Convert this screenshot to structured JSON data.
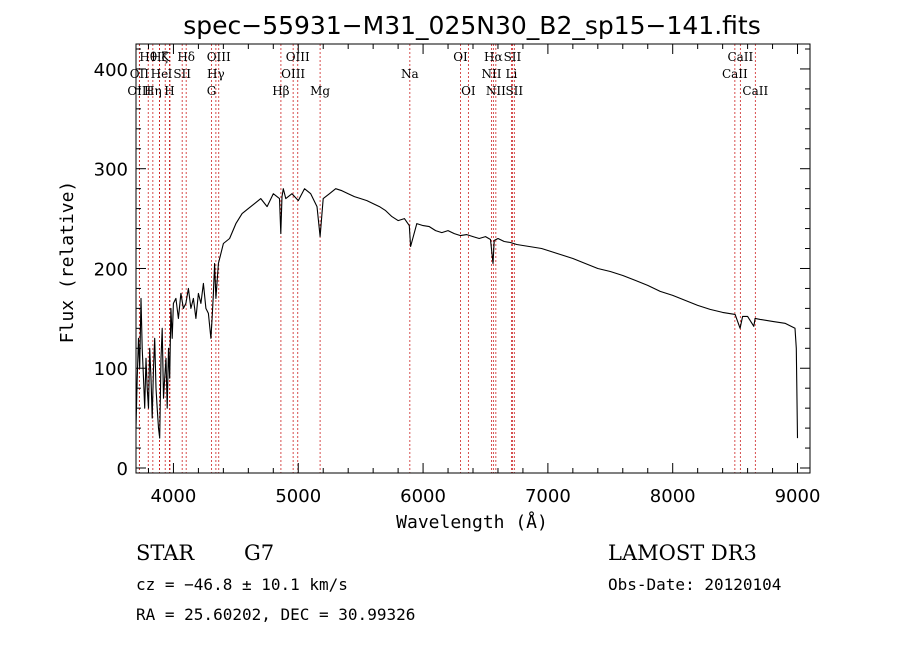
{
  "chart_data": {
    "type": "line",
    "title": "spec−55931−M31_025N30_B2_sp15−141.fits",
    "xlabel": "Wavelength (Å)",
    "ylabel": "Flux (relative)",
    "xlim": [
      3700,
      9100
    ],
    "ylim": [
      -5,
      425
    ],
    "xticks": [
      4000,
      5000,
      6000,
      7000,
      8000,
      9000
    ],
    "xtick_labels": [
      "4000",
      "5000",
      "6000",
      "7000",
      "8000",
      "9000"
    ],
    "yticks": [
      0,
      100,
      200,
      300,
      400
    ],
    "ytick_labels": [
      "0",
      "100",
      "200",
      "300",
      "400"
    ],
    "series": [
      {
        "name": "flux",
        "x": [
          3700,
          3710,
          3720,
          3730,
          3740,
          3750,
          3760,
          3770,
          3780,
          3790,
          3800,
          3810,
          3820,
          3830,
          3840,
          3850,
          3860,
          3870,
          3880,
          3890,
          3900,
          3910,
          3920,
          3930,
          3940,
          3950,
          3960,
          3970,
          3980,
          3990,
          4000,
          4020,
          4040,
          4060,
          4080,
          4100,
          4120,
          4140,
          4160,
          4180,
          4200,
          4220,
          4240,
          4260,
          4280,
          4300,
          4310,
          4320,
          4330,
          4340,
          4360,
          4380,
          4400,
          4450,
          4500,
          4550,
          4600,
          4650,
          4700,
          4750,
          4800,
          4850,
          4860,
          4870,
          4880,
          4900,
          4950,
          5000,
          5050,
          5100,
          5150,
          5175,
          5200,
          5250,
          5300,
          5350,
          5400,
          5450,
          5500,
          5550,
          5600,
          5650,
          5700,
          5750,
          5800,
          5850,
          5890,
          5900,
          5950,
          6000,
          6050,
          6100,
          6150,
          6200,
          6250,
          6300,
          6350,
          6400,
          6450,
          6500,
          6540,
          6560,
          6570,
          6600,
          6650,
          6700,
          6750,
          6800,
          6850,
          6900,
          6950,
          7000,
          7100,
          7200,
          7300,
          7400,
          7500,
          7600,
          7700,
          7800,
          7900,
          8000,
          8100,
          8200,
          8300,
          8400,
          8500,
          8540,
          8560,
          8600,
          8650,
          8660,
          8700,
          8800,
          8900,
          8980,
          8990,
          9000
        ],
        "y": [
          40,
          90,
          130,
          100,
          170,
          120,
          90,
          60,
          110,
          80,
          60,
          120,
          90,
          50,
          100,
          130,
          80,
          60,
          40,
          30,
          110,
          140,
          70,
          90,
          110,
          60,
          120,
          90,
          160,
          130,
          165,
          170,
          150,
          175,
          160,
          165,
          180,
          160,
          170,
          150,
          175,
          165,
          185,
          160,
          155,
          130,
          150,
          175,
          205,
          170,
          205,
          215,
          225,
          230,
          245,
          255,
          260,
          265,
          270,
          262,
          275,
          270,
          235,
          272,
          280,
          270,
          275,
          268,
          280,
          275,
          262,
          232,
          270,
          275,
          280,
          278,
          275,
          272,
          270,
          268,
          265,
          262,
          258,
          252,
          248,
          250,
          243,
          222,
          245,
          243,
          242,
          238,
          236,
          238,
          235,
          233,
          234,
          232,
          230,
          232,
          229,
          205,
          228,
          230,
          227,
          226,
          224,
          223,
          222,
          221,
          220,
          218,
          214,
          210,
          205,
          200,
          197,
          193,
          188,
          183,
          177,
          173,
          168,
          163,
          159,
          156,
          154,
          140,
          152,
          152,
          142,
          150,
          149,
          147,
          145,
          140,
          120,
          30
        ]
      }
    ],
    "lines": [
      {
        "label": "Hθ",
        "x": 3798,
        "row": 0
      },
      {
        "label": "OII",
        "x": 3727,
        "row": 1
      },
      {
        "label": "OIII",
        "x": 3727,
        "row": 2
      },
      {
        "label": "Hη",
        "x": 3835,
        "row": 2
      },
      {
        "label": "Hζ",
        "x": 3889,
        "row": 0
      },
      {
        "label": "He",
        "x": 3888,
        "row": 1
      },
      {
        "label": "K",
        "x": 3934,
        "row": 0
      },
      {
        "label": "H",
        "x": 3968,
        "row": 2
      },
      {
        "label": "SII",
        "x": 4070,
        "row": 1
      },
      {
        "label": "I",
        "x": 3972,
        "row": 1
      },
      {
        "label": "Hδ",
        "x": 4102,
        "row": 0
      },
      {
        "label": "OIII",
        "x": 4363,
        "row": 0
      },
      {
        "label": "Hγ",
        "x": 4340,
        "row": 1
      },
      {
        "label": "G",
        "x": 4305,
        "row": 2
      },
      {
        "label": "OIII",
        "x": 4996,
        "row": 0
      },
      {
        "label": "OIII",
        "x": 4959,
        "row": 1
      },
      {
        "label": "Hβ",
        "x": 4861,
        "row": 2
      },
      {
        "label": "Mg",
        "x": 5175,
        "row": 2
      },
      {
        "label": "Na",
        "x": 5894,
        "row": 1
      },
      {
        "label": "OI",
        "x": 6300,
        "row": 0
      },
      {
        "label": "OI",
        "x": 6363,
        "row": 2
      },
      {
        "label": "Hα",
        "x": 6563,
        "row": 0
      },
      {
        "label": "SII",
        "x": 6716,
        "row": 0
      },
      {
        "label": "NII",
        "x": 6548,
        "row": 1
      },
      {
        "label": "Li",
        "x": 6708,
        "row": 1
      },
      {
        "label": "NII",
        "x": 6583,
        "row": 2
      },
      {
        "label": "SII",
        "x": 6731,
        "row": 2
      },
      {
        "label": "CaII",
        "x": 8542,
        "row": 0
      },
      {
        "label": "CaII",
        "x": 8498,
        "row": 1
      },
      {
        "label": "CaII",
        "x": 8662,
        "row": 2
      }
    ]
  },
  "info": {
    "class": "STAR",
    "subclass": "G7",
    "survey": "LAMOST DR3",
    "redshift": "cz = −46.8 ± 10.1 km/s",
    "obs_date": "Obs-Date: 20120104",
    "coords": "RA =  25.60202, DEC =  30.99326"
  }
}
